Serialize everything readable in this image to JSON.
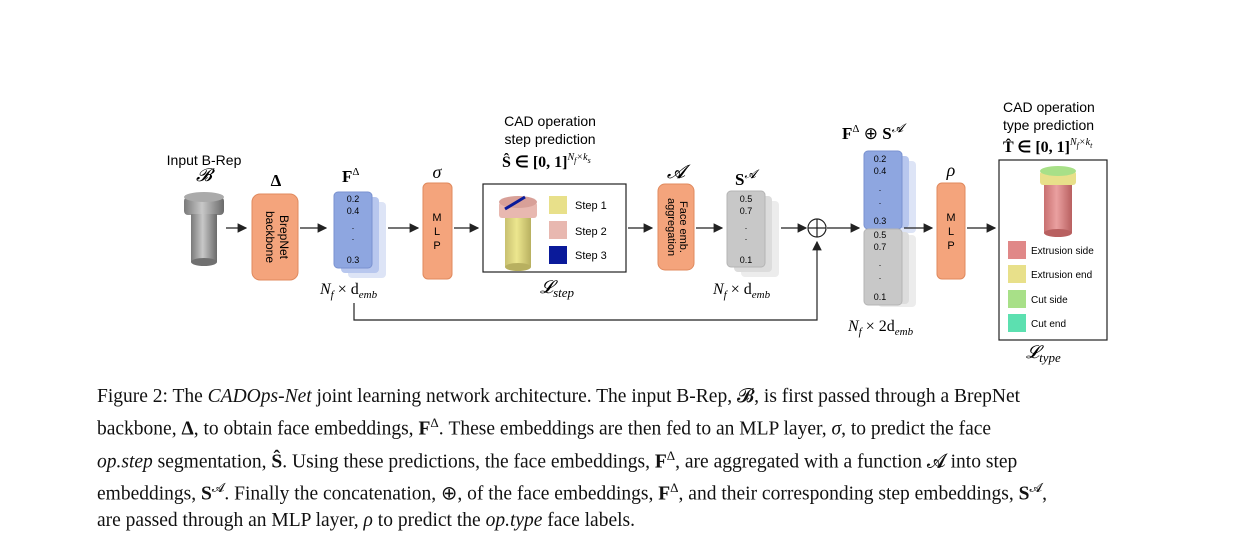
{
  "diagram": {
    "input_title": "Input B-Rep",
    "input_symbol": "𝓑",
    "backbone_symbol": "Δ",
    "backbone_label_line1": "BrepNet",
    "backbone_label_line2": "backbone",
    "face_emb_symbol": "F",
    "face_emb_sup": "Δ",
    "face_emb_values": [
      "0.2",
      "0.4",
      ".",
      ".",
      "0.3"
    ],
    "face_emb_dim": "N",
    "face_emb_dim_sub": "f",
    "face_emb_dim_rest": " × d",
    "face_emb_dim_rest_sub": "emb",
    "sigma_symbol": "σ",
    "mlp_letters": [
      "M",
      "L",
      "P"
    ],
    "step_pred_title_1": "CAD operation",
    "step_pred_title_2": "step prediction",
    "step_pred_formula": "Ŝ ∈ [0, 1]",
    "step_pred_formula_sup": "N",
    "step_pred_formula_sup_sub": "f",
    "step_pred_formula_sup_rest": "×k",
    "step_pred_formula_sup_rest_sub": "s",
    "step_legend": [
      "Step 1",
      "Step 2",
      "Step 3"
    ],
    "step_colors": [
      "#e8e08a",
      "#e8b8b0",
      "#0a1a9a"
    ],
    "loss_step": "𝓛",
    "loss_step_sub": "step",
    "agg_symbol": "𝓐",
    "agg_label_line1": "Face emb.",
    "agg_label_line2": "aggregation",
    "step_emb_symbol": "S",
    "step_emb_sup": "𝓐",
    "step_emb_values": [
      "0.5",
      "0.7",
      ".",
      ".",
      "0.1"
    ],
    "step_emb_dim": "N",
    "step_emb_dim_sub": "f",
    "step_emb_dim_rest": " × d",
    "step_emb_dim_rest_sub": "emb",
    "concat_symbol": "⊕",
    "concat_title_left": "F",
    "concat_title_left_sup": "Δ",
    "concat_title_mid": " ⊕ ",
    "concat_title_right": "S",
    "concat_title_right_sup": "𝓐",
    "concat_values_top": [
      "0.2",
      "0.4",
      ".",
      ".",
      "0.3"
    ],
    "concat_values_bottom": [
      "0.5",
      "0.7",
      ".",
      ".",
      "0.1"
    ],
    "concat_dim": "N",
    "concat_dim_sub": "f",
    "concat_dim_rest": " × 2d",
    "concat_dim_rest_sub": "emb",
    "rho_symbol": "ρ",
    "type_pred_title_1": "CAD operation",
    "type_pred_title_2": "type prediction",
    "type_pred_formula": "T̂ ∈ [0, 1]",
    "type_pred_formula_sup": "N",
    "type_pred_formula_sup_sub": "f",
    "type_pred_formula_sup_rest": "×k",
    "type_pred_formula_sup_rest_sub": "t",
    "type_legend": [
      "Extrusion side",
      "Extrusion end",
      "Cut side",
      "Cut end"
    ],
    "type_colors": [
      "#e08888",
      "#e8e08a",
      "#a8e088",
      "#5ce0b0"
    ],
    "loss_type": "𝓛",
    "loss_type_sub": "type",
    "colors": {
      "orange_block": "#f4a47c",
      "orange_border": "#e08a5e",
      "blue_emb": "#8ea6e0",
      "gray_emb": "#c8c8c8",
      "arrow": "#222222"
    }
  },
  "caption": {
    "lines": [
      [
        {
          "t": "Figure 2: The ",
          "s": "n"
        },
        {
          "t": "CADOps-Net",
          "s": "i"
        },
        {
          "t": " joint learning network architecture.  The input B-Rep, ",
          "s": "n"
        },
        {
          "t": "𝓑",
          "s": "n"
        },
        {
          "t": ", is first passed through a BrepNet",
          "s": "n"
        }
      ],
      [
        {
          "t": "backbone, ",
          "s": "n"
        },
        {
          "t": "Δ",
          "s": "b"
        },
        {
          "t": ", to obtain face embeddings, ",
          "s": "n"
        },
        {
          "t": "F",
          "s": "b"
        },
        {
          "t": "Δ",
          "s": "sup"
        },
        {
          "t": ".  These embeddings are then fed to an MLP layer, ",
          "s": "n"
        },
        {
          "t": "σ",
          "s": "i"
        },
        {
          "t": ", to predict the face",
          "s": "n"
        }
      ],
      [
        {
          "t": "op.step",
          "s": "i"
        },
        {
          "t": " segmentation, ",
          "s": "n"
        },
        {
          "t": "Ŝ",
          "s": "b"
        },
        {
          "t": ".  Using these predictions, the face embeddings, ",
          "s": "n"
        },
        {
          "t": "F",
          "s": "b"
        },
        {
          "t": "Δ",
          "s": "sup"
        },
        {
          "t": ", are aggregated with a function ",
          "s": "n"
        },
        {
          "t": "𝓐",
          "s": "n"
        },
        {
          "t": " into step",
          "s": "n"
        }
      ],
      [
        {
          "t": "embeddings, ",
          "s": "n"
        },
        {
          "t": "S",
          "s": "b"
        },
        {
          "t": "𝓐",
          "s": "sup"
        },
        {
          "t": ". Finally the concatenation, ",
          "s": "n"
        },
        {
          "t": "⊕",
          "s": "n"
        },
        {
          "t": ", of the face embeddings, ",
          "s": "n"
        },
        {
          "t": "F",
          "s": "b"
        },
        {
          "t": "Δ",
          "s": "sup"
        },
        {
          "t": ", and their corresponding step embeddings, ",
          "s": "n"
        },
        {
          "t": "S",
          "s": "b"
        },
        {
          "t": "𝓐",
          "s": "sup"
        },
        {
          "t": ",",
          "s": "n"
        }
      ],
      [
        {
          "t": "are passed through an MLP layer, ",
          "s": "n"
        },
        {
          "t": "ρ",
          "s": "i"
        },
        {
          "t": " to predict the ",
          "s": "n"
        },
        {
          "t": "op.type",
          "s": "i"
        },
        {
          "t": " face labels.",
          "s": "n"
        }
      ]
    ]
  }
}
